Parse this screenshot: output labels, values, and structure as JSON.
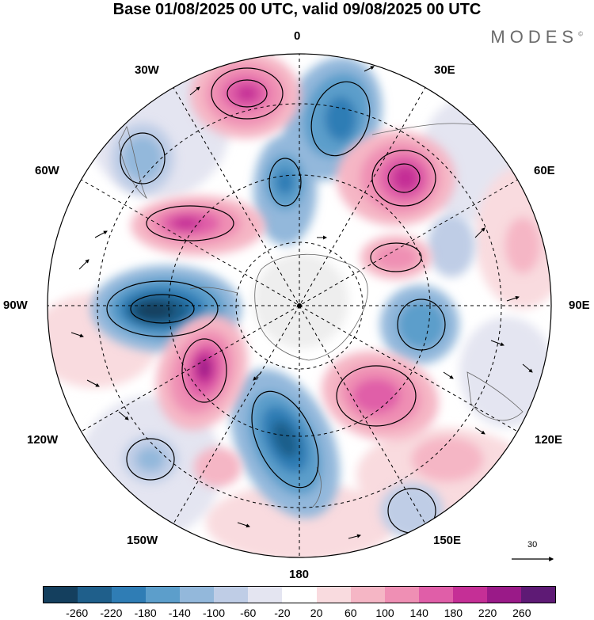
{
  "title": "Base 01/08/2025 00 UTC, valid 09/08/2025 00 UTC",
  "brand": "MODES",
  "brand_mark": "©",
  "map": {
    "projection": "south-polar-stereographic",
    "longitude_labels": {
      "top": "0",
      "top_right": "30E",
      "upper_right": "60E",
      "right": "90E",
      "lower_right": "120E",
      "bottom_right": "150E",
      "bottom": "180",
      "bottom_left": "150W",
      "lower_left": "120W",
      "left": "90W",
      "upper_left": "60W",
      "top_left": "30W"
    }
  },
  "vector_scale": {
    "value": "30"
  },
  "colorbar": {
    "colors": [
      "#143f5e",
      "#1f5f8b",
      "#2f7db5",
      "#5c9ecb",
      "#93b8db",
      "#bfcde6",
      "#e4e5f1",
      "#ffffff",
      "#f9dbdf",
      "#f5b6c5",
      "#ef8fb4",
      "#e05ea8",
      "#c52f96",
      "#9a1a88",
      "#5e1a75"
    ],
    "ticks": [
      "-260",
      "-220",
      "-180",
      "-140",
      "-100",
      "-60",
      "-20",
      "20",
      "60",
      "100",
      "140",
      "180",
      "220",
      "260"
    ]
  }
}
